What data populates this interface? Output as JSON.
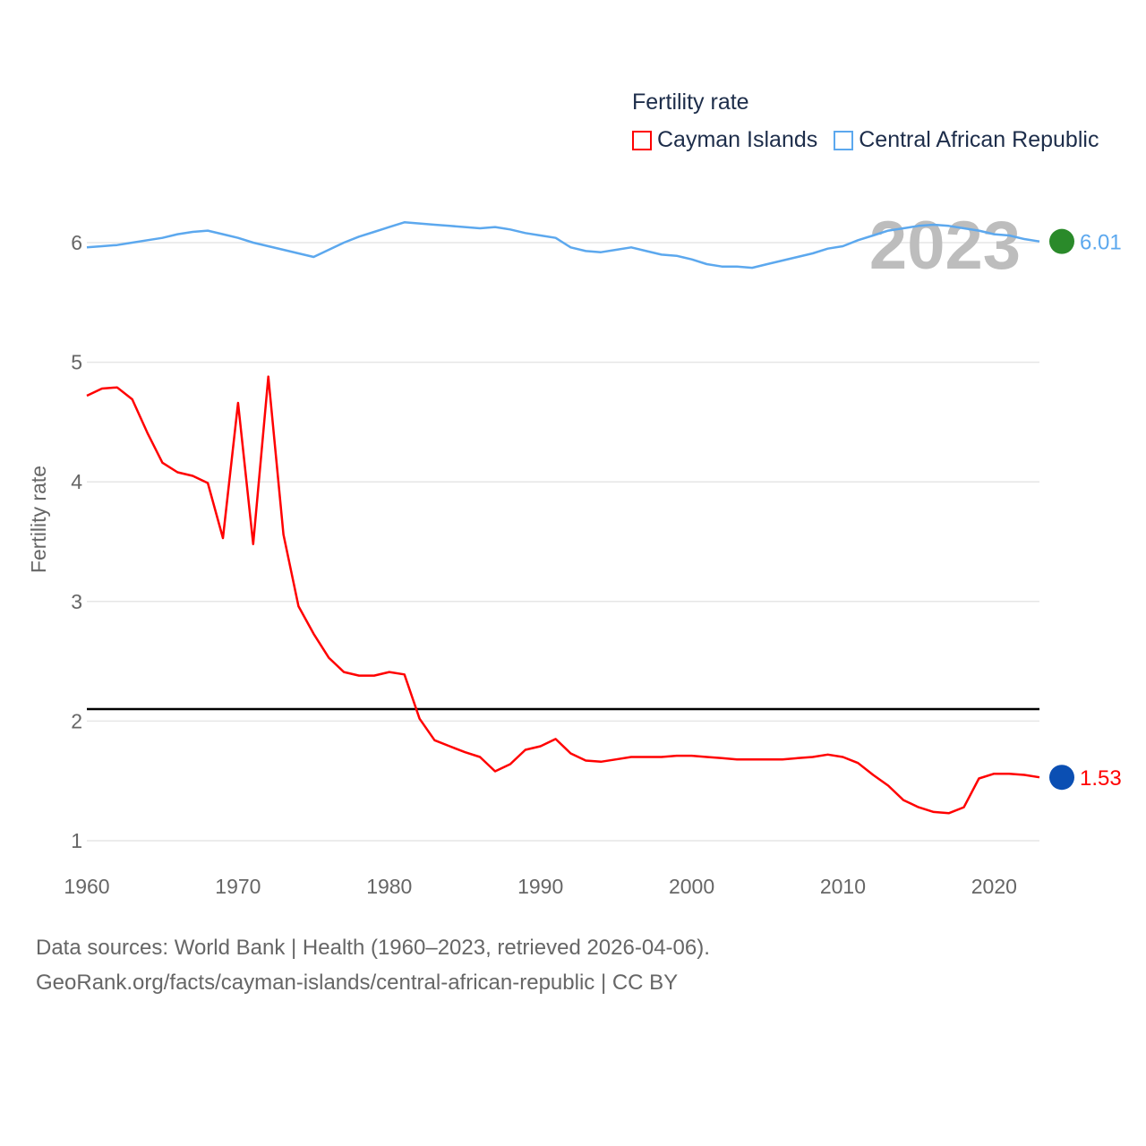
{
  "legend": {
    "title": "Fertility rate"
  },
  "year_watermark": "2023",
  "source": {
    "line1": "Data sources: World Bank | Health (1960–2023, retrieved 2026-04-06).",
    "line2": "GeoRank.org/facts/cayman-islands/central-african-republic | CC BY"
  },
  "chart_data": {
    "type": "line",
    "title": "Fertility rate",
    "xlabel": "",
    "ylabel": "Fertility rate",
    "xlim": [
      1960,
      2023
    ],
    "ylim": [
      1,
      6.5
    ],
    "x_ticks": [
      1960,
      1970,
      1980,
      1990,
      2000,
      2010,
      2020
    ],
    "y_ticks": [
      1,
      2,
      3,
      4,
      5,
      6
    ],
    "grid": true,
    "legend_position": "top-right",
    "reference_line": {
      "y": 2.1,
      "color": "#000000"
    },
    "x": [
      1960,
      1961,
      1962,
      1963,
      1964,
      1965,
      1966,
      1967,
      1968,
      1969,
      1970,
      1971,
      1972,
      1973,
      1974,
      1975,
      1976,
      1977,
      1978,
      1979,
      1980,
      1981,
      1982,
      1983,
      1984,
      1985,
      1986,
      1987,
      1988,
      1989,
      1990,
      1991,
      1992,
      1993,
      1994,
      1995,
      1996,
      1997,
      1998,
      1999,
      2000,
      2001,
      2002,
      2003,
      2004,
      2005,
      2006,
      2007,
      2008,
      2009,
      2010,
      2011,
      2012,
      2013,
      2014,
      2015,
      2016,
      2017,
      2018,
      2019,
      2020,
      2021,
      2022,
      2023
    ],
    "series": [
      {
        "name": "Cayman Islands",
        "color": "#ff0000",
        "end_label": "1.53",
        "values": [
          4.72,
          4.78,
          4.79,
          4.69,
          4.41,
          4.16,
          4.08,
          4.05,
          3.99,
          3.53,
          4.66,
          3.48,
          4.88,
          3.56,
          2.96,
          2.73,
          2.53,
          2.41,
          2.38,
          2.38,
          2.41,
          2.39,
          2.02,
          1.84,
          1.79,
          1.74,
          1.7,
          1.58,
          1.64,
          1.76,
          1.79,
          1.85,
          1.73,
          1.67,
          1.66,
          1.68,
          1.7,
          1.7,
          1.7,
          1.71,
          1.71,
          1.7,
          1.69,
          1.68,
          1.68,
          1.68,
          1.68,
          1.69,
          1.7,
          1.72,
          1.7,
          1.65,
          1.55,
          1.46,
          1.34,
          1.28,
          1.24,
          1.23,
          1.28,
          1.52,
          1.56,
          1.56,
          1.55,
          1.53
        ]
      },
      {
        "name": "Central African Republic",
        "color": "#5ca8ee",
        "end_label": "6.01",
        "values": [
          5.96,
          5.97,
          5.98,
          6.0,
          6.02,
          6.04,
          6.07,
          6.09,
          6.1,
          6.07,
          6.04,
          6.0,
          5.97,
          5.94,
          5.91,
          5.88,
          5.94,
          6.0,
          6.05,
          6.09,
          6.13,
          6.17,
          6.16,
          6.15,
          6.14,
          6.13,
          6.12,
          6.13,
          6.11,
          6.08,
          6.06,
          6.04,
          5.96,
          5.93,
          5.92,
          5.94,
          5.96,
          5.93,
          5.9,
          5.89,
          5.86,
          5.82,
          5.8,
          5.8,
          5.79,
          5.82,
          5.85,
          5.88,
          5.91,
          5.95,
          5.97,
          6.02,
          6.06,
          6.1,
          6.12,
          6.14,
          6.15,
          6.14,
          6.12,
          6.1,
          6.07,
          6.06,
          6.03,
          6.01
        ]
      }
    ]
  }
}
